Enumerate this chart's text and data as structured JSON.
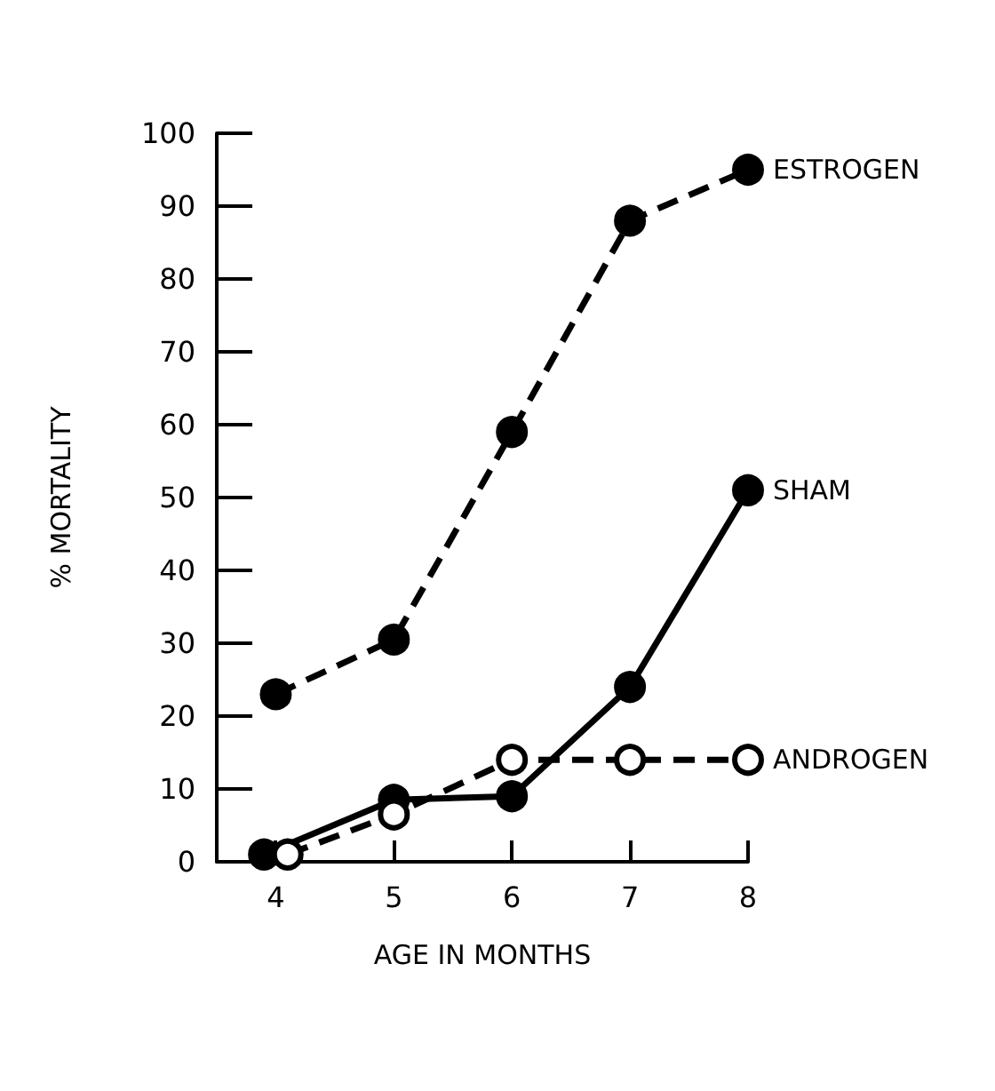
{
  "chart_data": {
    "type": "line",
    "xlabel": "AGE IN MONTHS",
    "ylabel": "% MORTALITY",
    "xlim": [
      3.5,
      8
    ],
    "xticks": [
      4,
      5,
      6,
      7,
      8
    ],
    "ylim": [
      0,
      100
    ],
    "yticks": [
      0,
      10,
      20,
      30,
      40,
      50,
      60,
      70,
      80,
      90,
      100
    ],
    "grid": false,
    "legend": false,
    "series": [
      {
        "name": "ESTROGEN",
        "color": "#000000",
        "x": [
          4,
          5,
          6,
          7,
          8
        ],
        "values": [
          23,
          30.5,
          59,
          88,
          95
        ],
        "marker": "circle",
        "line_style": "dashed"
      },
      {
        "name": "SHAM",
        "color": "#000000",
        "x": [
          3.9,
          5,
          6,
          7,
          8
        ],
        "values": [
          1,
          8.5,
          9,
          24,
          51
        ],
        "marker": "circle",
        "line_style": "solid"
      },
      {
        "name": "ANDROGEN",
        "color": "#000000",
        "x": [
          4.1,
          5,
          6,
          7,
          8
        ],
        "values": [
          1,
          6.5,
          14,
          14,
          14
        ],
        "marker": "open circle",
        "line_style": "dashed"
      }
    ]
  }
}
